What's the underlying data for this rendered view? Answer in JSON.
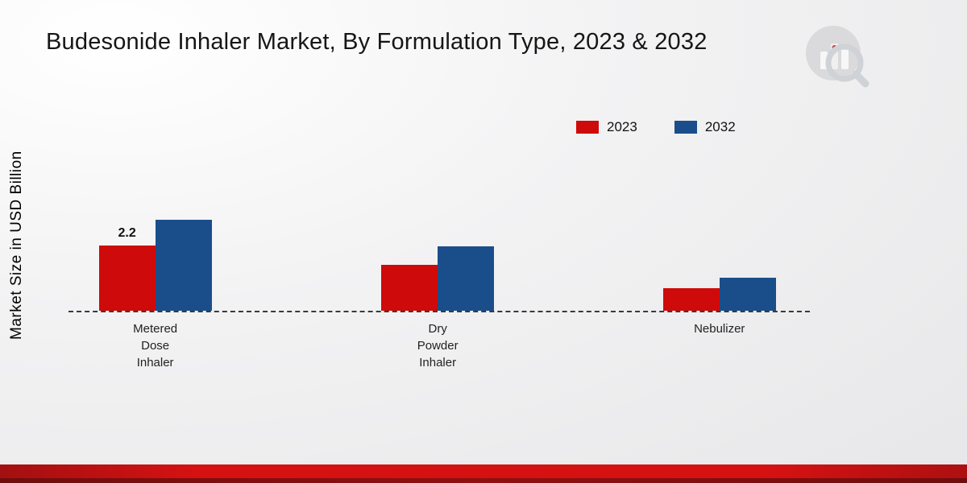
{
  "header": {
    "title": "Budesonide Inhaler Market, By Formulation Type, 2023 & 2032"
  },
  "icons": {
    "logo": "bar-chart-magnifier-logo"
  },
  "chart_data": {
    "type": "bar",
    "title": "Budesonide Inhaler Market, By Formulation Type, 2023 & 2032",
    "xlabel": "",
    "ylabel": "Market Size in USD Billion",
    "categories": [
      "Metered Dose Inhaler",
      "Dry Powder Inhaler",
      "Nebulizer"
    ],
    "categories_display": [
      "Metered\nDose\nInhaler",
      "Dry\nPowder\nInhaler",
      "Nebulizer"
    ],
    "series": [
      {
        "name": "2023",
        "color": "#cf0a0a",
        "values": [
          2.2,
          1.55,
          0.75
        ]
      },
      {
        "name": "2032",
        "color": "#1a4e8a",
        "values": [
          3.05,
          2.15,
          1.1
        ]
      }
    ],
    "annotations": [
      {
        "series_index": 0,
        "category_index": 0,
        "text": "2.2"
      }
    ],
    "ylim": [
      0,
      3.5
    ],
    "grid": false,
    "legend_position": "top-right",
    "baseline_style": "dashed"
  }
}
